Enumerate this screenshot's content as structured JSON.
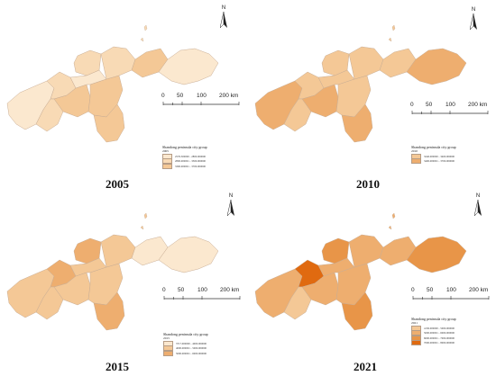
{
  "panels": [
    {
      "year": "2005",
      "legend": {
        "title": "Shandong peninsula city group",
        "year": "2005",
        "items": [
          {
            "label": "2576.300000 - 2800.000000",
            "color": "#fbe8cf"
          },
          {
            "label": "2800.000001 - 3300.000000",
            "color": "#f8dab5"
          },
          {
            "label": "3300.000001 - 3700.000000",
            "color": "#f4c896"
          }
        ]
      },
      "regions": [
        "#fbe8cf",
        "#f8dab5",
        "#f8dab5",
        "#f4c896",
        "#f8dab5",
        "#fbe8cf",
        "#f4c896",
        "#f4c896",
        "#f8dab5",
        "#f4c896",
        "#fbe8cf"
      ]
    },
    {
      "year": "2010",
      "legend": {
        "title": "Shandong peninsula city group",
        "year": "2010",
        "items": [
          {
            "label": "3240.000000 - 3400.000000",
            "color": "#f4c896"
          },
          {
            "label": "3400.000001 - 3700.000000",
            "color": "#eeae6f"
          }
        ]
      },
      "regions": [
        "#eeae6f",
        "#f4c896",
        "#f4c896",
        "#eeae6f",
        "#f4c896",
        "#f4c896",
        "#f4c896",
        "#eeae6f",
        "#f4c896",
        "#f4c896",
        "#eeae6f"
      ]
    },
    {
      "year": "2015",
      "legend": {
        "title": "Shandong peninsula city group",
        "year": "2015",
        "items": [
          {
            "label": "3717.000000 - 4000.000000",
            "color": "#fbe8cf"
          },
          {
            "label": "4000.000001 - 5000.000000",
            "color": "#f4c896"
          },
          {
            "label": "5000.000001 - 6000.000000",
            "color": "#eeae6f"
          }
        ]
      },
      "regions": [
        "#f4c896",
        "#eeae6f",
        "#f4c896",
        "#f4c896",
        "#eeae6f",
        "#f4c896",
        "#f4c896",
        "#eeae6f",
        "#f4c896",
        "#fbe8cf",
        "#fbe8cf"
      ]
    },
    {
      "year": "2021",
      "legend": {
        "title": "Shandong peninsula city group",
        "year": "2021",
        "items": [
          {
            "label": "4130.000000 - 5000.000000",
            "color": "#f4c896"
          },
          {
            "label": "5000.000001 - 6000.000000",
            "color": "#eeae6f"
          },
          {
            "label": "6000.000001 - 7000.000000",
            "color": "#e89548"
          },
          {
            "label": "7000.000001 - 8000.000000",
            "color": "#e06a10"
          }
        ]
      },
      "regions": [
        "#eeae6f",
        "#e06a10",
        "#f4c896",
        "#eeae6f",
        "#e89548",
        "#eeae6f",
        "#eeae6f",
        "#e89548",
        "#eeae6f",
        "#eeae6f",
        "#e89548"
      ]
    }
  ],
  "scale": {
    "labels": [
      "0",
      "50",
      "100",
      "200 km"
    ]
  },
  "north": {
    "label": "N"
  }
}
